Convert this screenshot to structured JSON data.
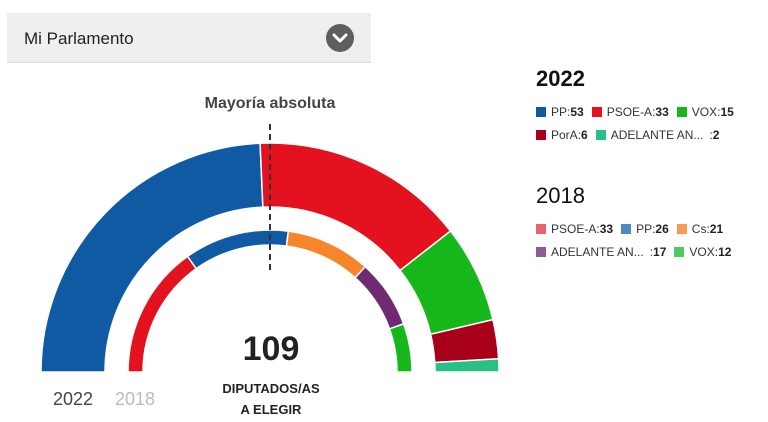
{
  "header": {
    "dropdown_label": "Mi Parlamento",
    "dropdown_icon": "chevron-down-icon"
  },
  "chart": {
    "majority_label": "Mayoría absoluta",
    "total_value": "109",
    "total_caption_1": "DIPUTADOS/AS",
    "total_caption_2": "A ELEGIR",
    "year_tabs": [
      {
        "label": "2022",
        "active": true
      },
      {
        "label": "2018",
        "active": false
      }
    ]
  },
  "chart_data": {
    "type": "parliament_semicircle",
    "total_seats": 109,
    "majority_threshold": 55,
    "rings": [
      {
        "year": "2022",
        "ring": "outer",
        "seats": [
          {
            "party": "PP",
            "value": 53,
            "color": "#0f5aa3"
          },
          {
            "party": "PSOE-A",
            "value": 33,
            "color": "#e3121e"
          },
          {
            "party": "VOX",
            "value": 15,
            "color": "#16b71a"
          },
          {
            "party": "PorA",
            "value": 6,
            "color": "#a8001b"
          },
          {
            "party": "ADELANTE AN...",
            "value": 2,
            "color": "#28c184"
          }
        ]
      },
      {
        "year": "2018",
        "ring": "inner",
        "seats": [
          {
            "party": "PSOE-A",
            "value": 33,
            "color": "#e3121e"
          },
          {
            "party": "PP",
            "value": 26,
            "color": "#0f5aa3"
          },
          {
            "party": "Cs",
            "value": 21,
            "color": "#f7862a"
          },
          {
            "party": "ADELANTE AN...",
            "value": 17,
            "color": "#6f2a72"
          },
          {
            "party": "VOX",
            "value": 12,
            "color": "#16b71a"
          }
        ]
      }
    ]
  },
  "legend": [
    {
      "year": "2022",
      "bold": true,
      "rows": [
        [
          {
            "name": "PP",
            "value": "53",
            "color": "#0f5aa3"
          },
          {
            "name": "PSOE-A",
            "value": "33",
            "color": "#e3121e"
          },
          {
            "name": "VOX",
            "value": "15",
            "color": "#16b71a"
          }
        ],
        [
          {
            "name": "PorA",
            "value": "6",
            "color": "#a8001b"
          },
          {
            "name": "ADELANTE AN...",
            "value": "2",
            "color": "#28c184"
          }
        ]
      ]
    },
    {
      "year": "2018",
      "bold": false,
      "rows": [
        [
          {
            "name": "PSOE-A",
            "value": "33",
            "color": "#e8636b"
          },
          {
            "name": "PP",
            "value": "26",
            "color": "#4f86c6"
          },
          {
            "name": "Cs",
            "value": "21",
            "color": "#f79a52"
          }
        ],
        [
          {
            "name": "ADELANTE AN...",
            "value": "17",
            "color": "#8f5c93"
          },
          {
            "name": "VOX",
            "value": "12",
            "color": "#4fcc5f"
          }
        ]
      ]
    }
  ]
}
